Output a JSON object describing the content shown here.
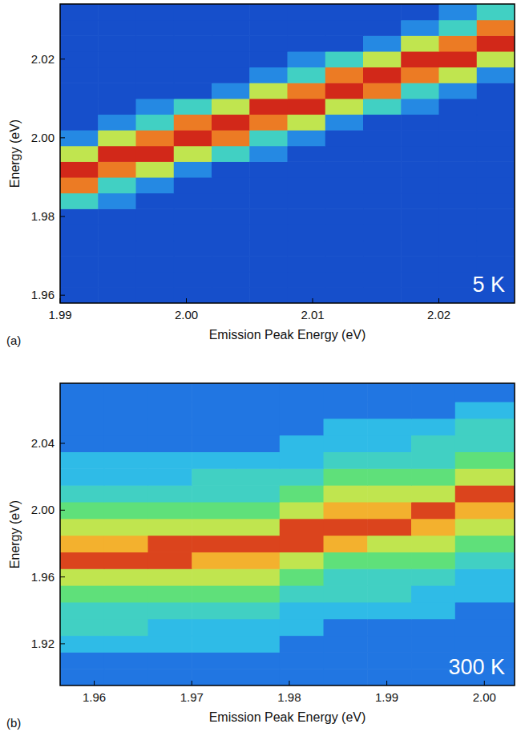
{
  "chart_data": [
    {
      "type": "heatmap",
      "panel_label": "(a)",
      "x_label": "Emission Peak Energy (eV)",
      "y_label": "Energy (eV)",
      "annotations": [
        "5 K"
      ],
      "xlim": [
        1.99,
        2.026
      ],
      "ylim": [
        1.958,
        2.034
      ],
      "xticks": [
        1.99,
        {
          "value": 2,
          "label": "2.00"
        },
        2.01,
        2.02
      ],
      "yticks": [
        1.96,
        1.98,
        {
          "value": 2,
          "label": "2.00"
        },
        2.02
      ],
      "zlim": [
        0,
        1
      ],
      "x_edges": [
        1.99,
        1.993,
        1.996,
        1.999,
        2.002,
        2.005,
        2.008,
        2.011,
        2.014,
        2.017,
        2.02,
        2.023,
        2.026
      ],
      "y_edges": [
        1.958,
        1.962,
        1.966,
        1.97,
        1.974,
        1.978,
        1.982,
        1.986,
        1.99,
        1.994,
        1.998,
        2.002,
        2.006,
        2.01,
        2.014,
        2.018,
        2.022,
        2.026,
        2.03,
        2.034
      ],
      "z": [
        [
          0.12,
          0.12,
          0.12,
          0.12,
          0.12,
          0.12,
          0.12,
          0.12,
          0.12,
          0.12,
          0.12,
          0.12
        ],
        [
          0.12,
          0.12,
          0.12,
          0.12,
          0.12,
          0.12,
          0.12,
          0.12,
          0.12,
          0.12,
          0.12,
          0.12
        ],
        [
          0.12,
          0.12,
          0.12,
          0.12,
          0.12,
          0.12,
          0.12,
          0.12,
          0.12,
          0.12,
          0.12,
          0.12
        ],
        [
          0.12,
          0.12,
          0.12,
          0.12,
          0.12,
          0.12,
          0.12,
          0.12,
          0.12,
          0.12,
          0.12,
          0.12
        ],
        [
          0.12,
          0.12,
          0.12,
          0.12,
          0.12,
          0.12,
          0.12,
          0.12,
          0.12,
          0.12,
          0.12,
          0.12
        ],
        [
          0.12,
          0.12,
          0.12,
          0.12,
          0.12,
          0.12,
          0.12,
          0.12,
          0.12,
          0.12,
          0.12,
          0.12
        ],
        [
          0.4,
          0.25,
          0.12,
          0.12,
          0.12,
          0.12,
          0.12,
          0.12,
          0.12,
          0.12,
          0.12,
          0.12
        ],
        [
          0.85,
          0.4,
          0.25,
          0.12,
          0.12,
          0.12,
          0.12,
          0.12,
          0.12,
          0.12,
          0.12,
          0.12
        ],
        [
          1,
          0.85,
          0.6,
          0.25,
          0.12,
          0.12,
          0.12,
          0.12,
          0.12,
          0.12,
          0.12,
          0.12
        ],
        [
          0.6,
          1,
          1,
          0.6,
          0.4,
          0.25,
          0.12,
          0.12,
          0.12,
          0.12,
          0.12,
          0.12
        ],
        [
          0.25,
          0.6,
          0.85,
          1,
          0.85,
          0.4,
          0.25,
          0.12,
          0.12,
          0.12,
          0.12,
          0.12
        ],
        [
          0.12,
          0.25,
          0.4,
          0.85,
          1,
          0.85,
          0.6,
          0.25,
          0.12,
          0.12,
          0.12,
          0.12
        ],
        [
          0.12,
          0.12,
          0.25,
          0.4,
          0.6,
          1,
          1,
          0.6,
          0.4,
          0.25,
          0.12,
          0.12
        ],
        [
          0.12,
          0.12,
          0.12,
          0.12,
          0.25,
          0.6,
          0.85,
          1,
          0.85,
          0.4,
          0.25,
          0.12
        ],
        [
          0.12,
          0.12,
          0.12,
          0.12,
          0.12,
          0.25,
          0.4,
          0.85,
          1,
          0.85,
          0.6,
          0.25
        ],
        [
          0.12,
          0.12,
          0.12,
          0.12,
          0.12,
          0.12,
          0.25,
          0.4,
          0.6,
          1,
          1,
          0.6
        ],
        [
          0.12,
          0.12,
          0.12,
          0.12,
          0.12,
          0.12,
          0.12,
          0.12,
          0.25,
          0.6,
          0.85,
          1
        ],
        [
          0.12,
          0.12,
          0.12,
          0.12,
          0.12,
          0.12,
          0.12,
          0.12,
          0.12,
          0.25,
          0.4,
          0.85
        ],
        [
          0.12,
          0.12,
          0.12,
          0.12,
          0.12,
          0.12,
          0.12,
          0.12,
          0.12,
          0.12,
          0.25,
          0.4
        ]
      ]
    },
    {
      "type": "heatmap",
      "panel_label": "(b)",
      "x_label": "Emission Peak Energy (eV)",
      "y_label": "Energy (eV)",
      "annotations": [
        "300 K"
      ],
      "xlim": [
        1.9565,
        2.0031
      ],
      "ylim": [
        1.895,
        2.076
      ],
      "xticks": [
        1.96,
        1.97,
        1.98,
        1.99,
        {
          "value": 2,
          "label": "2.00"
        }
      ],
      "yticks": [
        1.92,
        1.96,
        {
          "value": 2,
          "label": "2.00"
        },
        2.04
      ],
      "zlim": [
        0,
        1
      ],
      "x_edges": [
        1.9565,
        1.961,
        1.9655,
        1.97,
        1.9745,
        1.979,
        1.9835,
        1.988,
        1.9925,
        1.997,
        2.0031
      ],
      "y_edges": [
        1.895,
        1.905,
        1.915,
        1.925,
        1.935,
        1.945,
        1.955,
        1.965,
        1.975,
        1.985,
        1.995,
        2.005,
        2.015,
        2.025,
        2.035,
        2.045,
        2.055,
        2.065,
        2.076
      ],
      "z": [
        [
          0.22,
          0.22,
          0.22,
          0.22,
          0.22,
          0.22,
          0.22,
          0.22,
          0.22,
          0.22
        ],
        [
          0.22,
          0.22,
          0.22,
          0.22,
          0.22,
          0.22,
          0.22,
          0.22,
          0.22,
          0.22
        ],
        [
          0.33,
          0.33,
          0.33,
          0.33,
          0.33,
          0.22,
          0.22,
          0.22,
          0.22,
          0.22
        ],
        [
          0.4,
          0.4,
          0.33,
          0.33,
          0.33,
          0.33,
          0.22,
          0.22,
          0.22,
          0.22
        ],
        [
          0.4,
          0.4,
          0.4,
          0.4,
          0.4,
          0.33,
          0.33,
          0.33,
          0.33,
          0.22
        ],
        [
          0.5,
          0.5,
          0.5,
          0.5,
          0.5,
          0.4,
          0.4,
          0.4,
          0.33,
          0.33
        ],
        [
          0.6,
          0.6,
          0.6,
          0.6,
          0.6,
          0.5,
          0.4,
          0.4,
          0.4,
          0.33
        ],
        [
          0.95,
          0.95,
          0.95,
          0.75,
          0.75,
          0.6,
          0.5,
          0.5,
          0.5,
          0.4
        ],
        [
          0.75,
          0.75,
          0.95,
          0.95,
          0.95,
          0.95,
          0.75,
          0.6,
          0.6,
          0.5
        ],
        [
          0.6,
          0.6,
          0.6,
          0.6,
          0.6,
          0.95,
          0.95,
          0.95,
          0.75,
          0.6
        ],
        [
          0.5,
          0.5,
          0.5,
          0.5,
          0.5,
          0.6,
          0.75,
          0.75,
          0.95,
          0.75
        ],
        [
          0.4,
          0.4,
          0.4,
          0.4,
          0.4,
          0.5,
          0.6,
          0.6,
          0.6,
          0.95
        ],
        [
          0.33,
          0.33,
          0.33,
          0.4,
          0.4,
          0.4,
          0.5,
          0.5,
          0.5,
          0.6
        ],
        [
          0.33,
          0.33,
          0.33,
          0.33,
          0.33,
          0.33,
          0.4,
          0.4,
          0.4,
          0.5
        ],
        [
          0.22,
          0.22,
          0.22,
          0.22,
          0.22,
          0.33,
          0.33,
          0.33,
          0.4,
          0.4
        ],
        [
          0.22,
          0.22,
          0.22,
          0.22,
          0.22,
          0.22,
          0.33,
          0.33,
          0.33,
          0.4
        ],
        [
          0.22,
          0.22,
          0.22,
          0.22,
          0.22,
          0.22,
          0.22,
          0.22,
          0.22,
          0.33
        ],
        [
          0.22,
          0.22,
          0.22,
          0.22,
          0.22,
          0.22,
          0.22,
          0.22,
          0.22,
          0.22
        ]
      ]
    }
  ]
}
